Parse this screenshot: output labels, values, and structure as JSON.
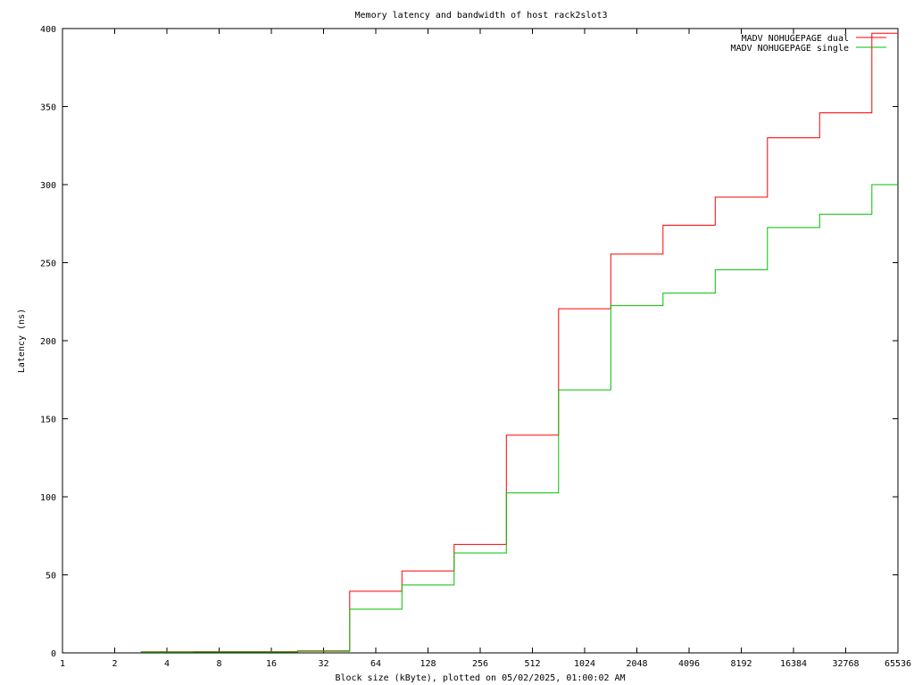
{
  "chart_data": {
    "type": "line",
    "title": "Memory latency and bandwidth of host rack2slot3",
    "xlabel": "Block size (kByte), plotted on 05/02/2025, 01:00:02 AM",
    "ylabel": "Latency (ns)",
    "xscale": "log2",
    "xlim": [
      1,
      65536
    ],
    "ylim": [
      0,
      400
    ],
    "grid": false,
    "legend_position": "top-right",
    "xticks": [
      1,
      2,
      4,
      8,
      16,
      32,
      64,
      128,
      256,
      512,
      1024,
      2048,
      4096,
      8192,
      16384,
      32768,
      65536
    ],
    "xtick_labels": [
      "1",
      "2",
      "4",
      "8",
      "16",
      "32",
      "64",
      "128",
      "256",
      "512",
      "1024",
      "2048",
      "4096",
      "8192",
      "16384",
      "32768",
      "65536"
    ],
    "yticks": [
      0,
      50,
      100,
      150,
      200,
      250,
      300,
      350,
      400
    ],
    "ytick_labels": [
      "0",
      "50",
      "100",
      "150",
      "200",
      "250",
      "300",
      "350",
      "400"
    ],
    "step": "mid",
    "series": [
      {
        "name": "MADV NOHUGEPAGE dual",
        "color": "#ff0000",
        "x": [
          4,
          8,
          16,
          32,
          64,
          128,
          256,
          512,
          1024,
          2048,
          4096,
          8192,
          16384,
          32768,
          65536
        ],
        "y": [
          0.7,
          0.8,
          0.8,
          1.3,
          39.5,
          52.5,
          69.5,
          139.5,
          220.5,
          255.5,
          274,
          292,
          330,
          346,
          397
        ]
      },
      {
        "name": "MADV NOHUGEPAGE single",
        "color": "#00c000",
        "x": [
          4,
          8,
          16,
          32,
          64,
          128,
          256,
          512,
          1024,
          2048,
          4096,
          8192,
          16384,
          32768,
          65536
        ],
        "y": [
          0.5,
          0.6,
          0.6,
          1.0,
          28,
          43.5,
          64,
          102.5,
          168.5,
          222.5,
          230.5,
          245.5,
          272.5,
          281,
          300
        ]
      }
    ]
  }
}
